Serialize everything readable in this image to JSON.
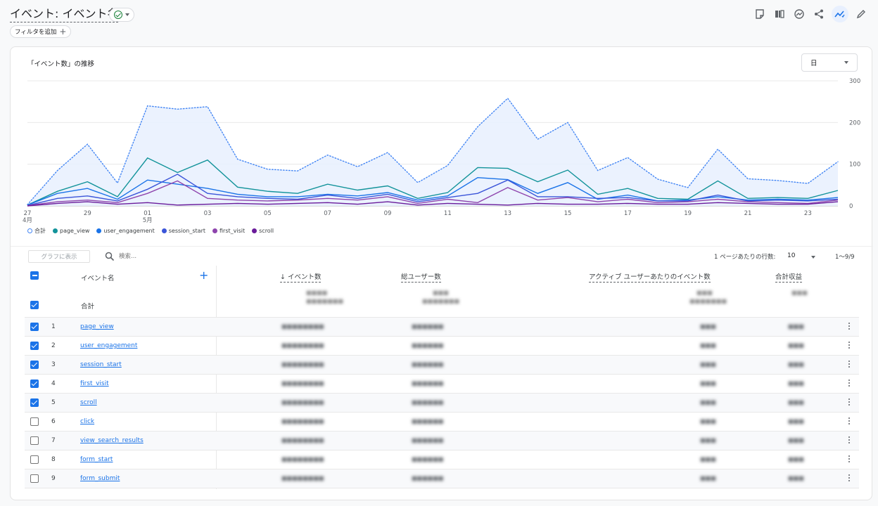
{
  "header": {
    "title": "イベント: イベント名",
    "filter_chip": "フィルタを追加",
    "tool_icons": [
      "insights-icon",
      "compare-icon",
      "explore-icon",
      "share-icon",
      "trend-icon",
      "edit-icon"
    ]
  },
  "chart": {
    "title": "「イベント数」の推移",
    "period": "日"
  },
  "chart_data": {
    "type": "line",
    "x": [
      "27 4月",
      "28",
      "29",
      "30",
      "01 5月",
      "02",
      "03",
      "04",
      "05",
      "06",
      "07",
      "08",
      "09",
      "10",
      "11",
      "12",
      "13",
      "14",
      "15",
      "16",
      "17",
      "18",
      "19",
      "20",
      "21",
      "22",
      "23",
      "24"
    ],
    "x_tick_labels": [
      "27",
      "29",
      "01",
      "03",
      "05",
      "07",
      "09",
      "11",
      "13",
      "15",
      "17",
      "19",
      "21",
      "23"
    ],
    "x_tick_sublabels": [
      "4月",
      "",
      "5月",
      "",
      "",
      "",
      "",
      "",
      "",
      "",
      "",
      "",
      "",
      ""
    ],
    "y_ticks": [
      "300",
      "200",
      "100",
      "0"
    ],
    "ylim": [
      0,
      300
    ],
    "grid": true,
    "legend_position": "bottom-left",
    "series": [
      {
        "name": "合計",
        "color": "#4285f4",
        "style": "dotted-area",
        "values": [
          3,
          85,
          148,
          55,
          240,
          232,
          238,
          112,
          88,
          84,
          122,
          94,
          128,
          56,
          97,
          190,
          258,
          160,
          200,
          85,
          116,
          64,
          44,
          136,
          65,
          61,
          54,
          106
        ]
      },
      {
        "name": "page_view",
        "color": "#12939a",
        "values": [
          2,
          35,
          58,
          22,
          115,
          80,
          110,
          45,
          35,
          30,
          52,
          38,
          48,
          18,
          32,
          92,
          90,
          58,
          86,
          28,
          42,
          18,
          16,
          60,
          18,
          20,
          18,
          37
        ]
      },
      {
        "name": "user_engagement",
        "color": "#1a73e8",
        "values": [
          2,
          30,
          42,
          16,
          62,
          52,
          42,
          28,
          22,
          22,
          28,
          24,
          32,
          14,
          24,
          68,
          63,
          30,
          56,
          16,
          26,
          12,
          14,
          22,
          14,
          16,
          14,
          20
        ]
      },
      {
        "name": "session_start",
        "color": "#3b55d9",
        "values": [
          1,
          18,
          24,
          12,
          40,
          76,
          30,
          22,
          18,
          16,
          26,
          18,
          28,
          10,
          20,
          30,
          62,
          22,
          22,
          18,
          20,
          12,
          12,
          26,
          12,
          14,
          12,
          16
        ]
      },
      {
        "name": "first_visit",
        "color": "#8e44ad",
        "values": [
          1,
          10,
          14,
          8,
          30,
          60,
          18,
          14,
          12,
          14,
          18,
          14,
          22,
          6,
          16,
          8,
          44,
          14,
          20,
          10,
          16,
          8,
          10,
          16,
          10,
          8,
          6,
          14
        ]
      },
      {
        "name": "scroll",
        "color": "#6a1b9a",
        "values": [
          0,
          6,
          10,
          4,
          8,
          2,
          4,
          6,
          4,
          6,
          8,
          4,
          10,
          2,
          6,
          4,
          2,
          6,
          4,
          4,
          6,
          4,
          4,
          8,
          6,
          4,
          4,
          10
        ]
      }
    ]
  },
  "table": {
    "graph_button": "グラフに表示",
    "search_placeholder": "検索...",
    "rows_per_page_label": "1 ページあたりの行数:",
    "rows_per_page_value": "10",
    "page_range": "1〜9/9",
    "headers": {
      "dimension": "イベント名",
      "metric1": "↓ イベント数",
      "metric2": "総ユーザー数",
      "metric3": "アクティブ ユーザーあたりのイベント数",
      "metric4": "合計収益"
    },
    "total_label": "合計",
    "rows": [
      {
        "idx": "1",
        "name": "page_view",
        "checked": true
      },
      {
        "idx": "2",
        "name": "user_engagement",
        "checked": true
      },
      {
        "idx": "3",
        "name": "session_start",
        "checked": true
      },
      {
        "idx": "4",
        "name": "first_visit",
        "checked": true
      },
      {
        "idx": "5",
        "name": "scroll",
        "checked": true
      },
      {
        "idx": "6",
        "name": "click",
        "checked": false
      },
      {
        "idx": "7",
        "name": "view_search_results",
        "checked": false
      },
      {
        "idx": "8",
        "name": "form_start",
        "checked": false
      },
      {
        "idx": "9",
        "name": "form_submit",
        "checked": false
      }
    ]
  }
}
